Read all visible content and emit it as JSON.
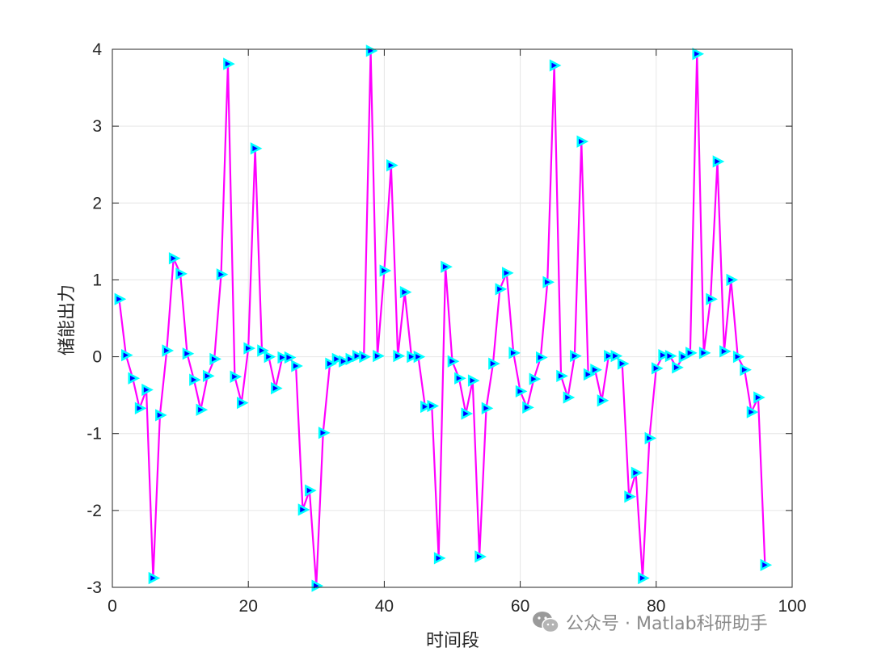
{
  "chart_data": {
    "type": "line",
    "title": "",
    "xlabel": "时间段",
    "ylabel": "储能出力",
    "xlim": [
      0,
      100
    ],
    "ylim": [
      -3,
      4
    ],
    "xticks": [
      0,
      20,
      40,
      60,
      80,
      100
    ],
    "yticks": [
      -3,
      -2,
      -1,
      0,
      1,
      2,
      3,
      4
    ],
    "grid": true,
    "legend": "none",
    "line_color": "#ff00ff",
    "marker": "right-triangle",
    "marker_face_color": "#0000ff",
    "marker_edge_color": "#00ffff",
    "series": [
      {
        "x": [
          1,
          2,
          3,
          4,
          5,
          6,
          7,
          8,
          9,
          10,
          11,
          12,
          13,
          14,
          15,
          16,
          17,
          18,
          19,
          20,
          21,
          22,
          23,
          24,
          25,
          26,
          27,
          28,
          29,
          30,
          31,
          32,
          33,
          34,
          35,
          36,
          37,
          38,
          39,
          40,
          41,
          42,
          43,
          44,
          45,
          46,
          47,
          48,
          49,
          50,
          51,
          52,
          53,
          54,
          55,
          56,
          57,
          58,
          59,
          60,
          61,
          62,
          63,
          64,
          65,
          66,
          67,
          68,
          69,
          70,
          71,
          72,
          73,
          74,
          75,
          76,
          77,
          78,
          79,
          80,
          81,
          82,
          83,
          84,
          85,
          86,
          87,
          88,
          89,
          90,
          91,
          92,
          93,
          94,
          95,
          96
        ],
        "values": [
          0.75,
          0.02,
          -0.28,
          -0.67,
          -0.43,
          -2.88,
          -0.76,
          0.08,
          1.28,
          1.08,
          0.04,
          -0.3,
          -0.69,
          -0.25,
          -0.03,
          1.07,
          3.81,
          -0.26,
          -0.6,
          0.11,
          2.71,
          0.08,
          0.0,
          -0.41,
          -0.01,
          -0.01,
          -0.12,
          -1.99,
          -1.74,
          -2.98,
          -0.99,
          -0.09,
          -0.03,
          -0.06,
          -0.03,
          0.01,
          0.0,
          3.98,
          0.01,
          1.12,
          2.49,
          0.01,
          0.84,
          0.0,
          0.0,
          -0.65,
          -0.64,
          -2.62,
          1.17,
          -0.06,
          -0.28,
          -0.74,
          -0.31,
          -2.6,
          -0.67,
          -0.09,
          0.88,
          1.09,
          0.05,
          -0.45,
          -0.66,
          -0.29,
          -0.01,
          0.97,
          3.79,
          -0.25,
          -0.53,
          0.01,
          2.8,
          -0.23,
          -0.17,
          -0.57,
          0.01,
          0.01,
          -0.09,
          -1.82,
          -1.51,
          -2.88,
          -1.06,
          -0.15,
          0.02,
          0.01,
          -0.14,
          0.0,
          0.05,
          3.94,
          0.05,
          0.75,
          2.54,
          0.07,
          1.0,
          0.0,
          -0.17,
          -0.72,
          -0.53,
          -2.71
        ]
      }
    ]
  },
  "watermark": {
    "icon": "wechat-icon",
    "text": "公众号 · Matlab科研助手"
  }
}
